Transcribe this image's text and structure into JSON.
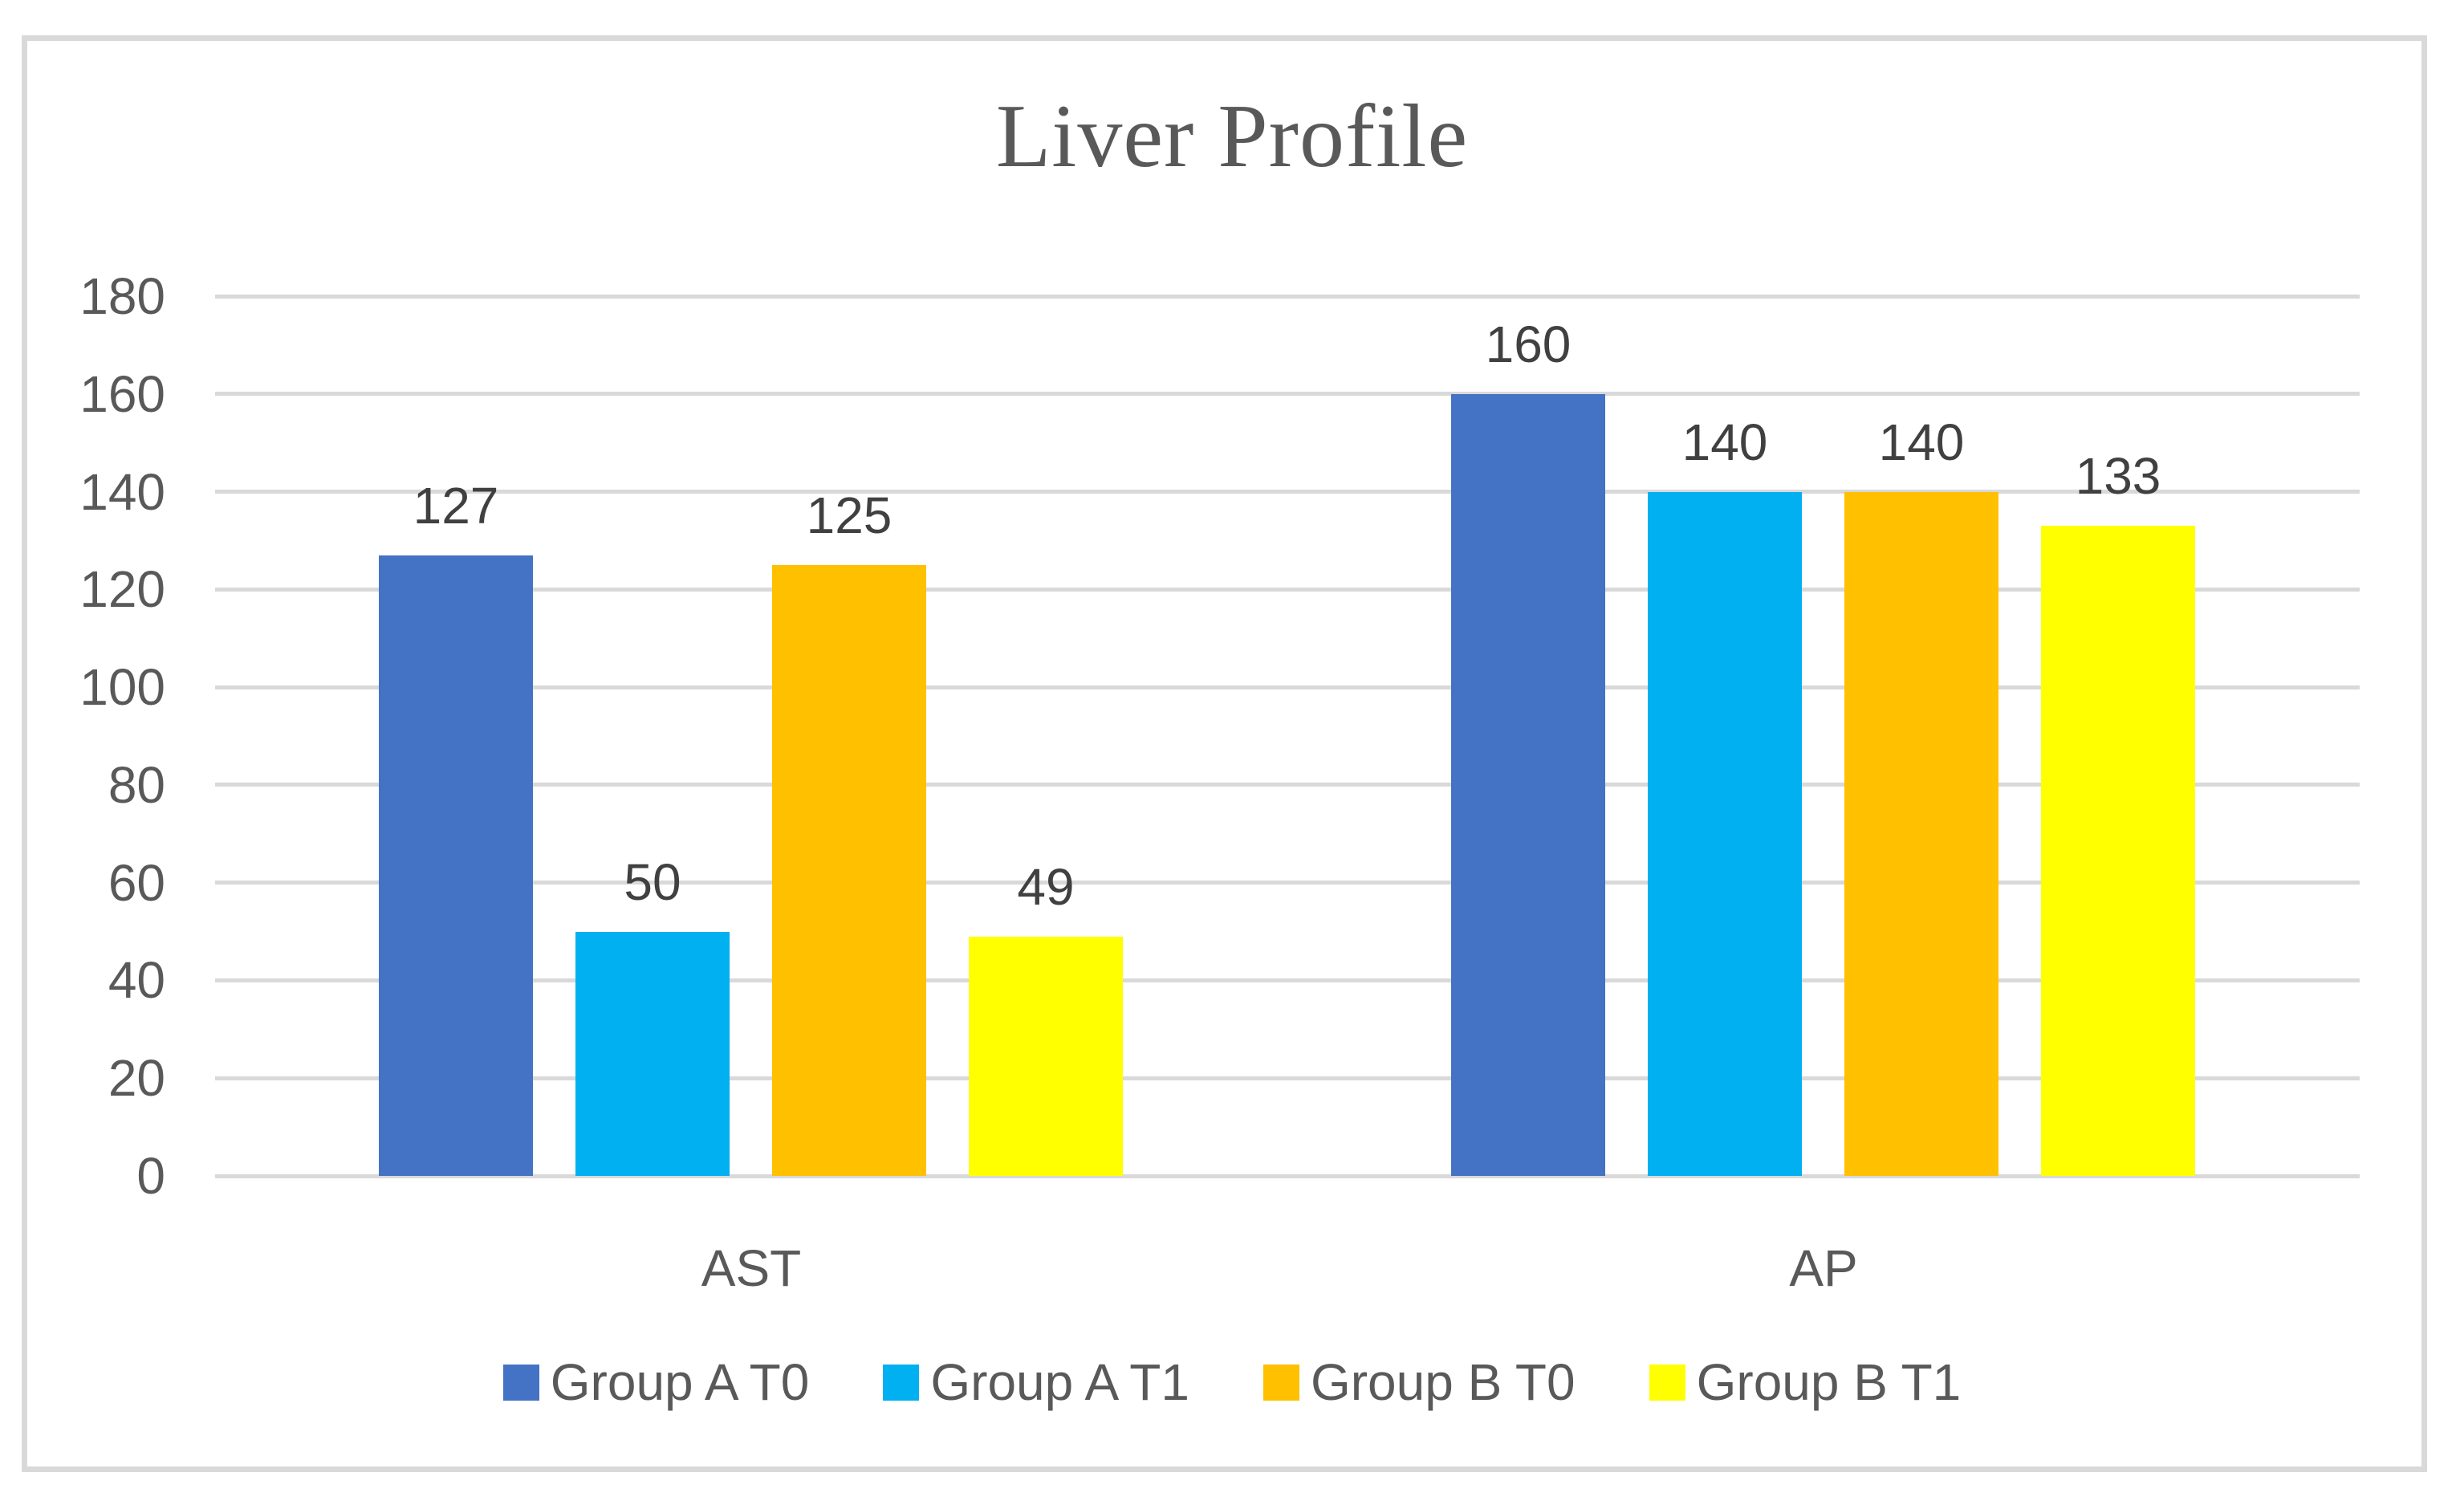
{
  "chart_data": {
    "type": "bar",
    "title": "Liver Profile",
    "categories": [
      "AST",
      "AP"
    ],
    "series": [
      {
        "name": "Group A T0",
        "color": "#4472C4",
        "values": [
          127,
          160
        ]
      },
      {
        "name": "Group A T1",
        "color": "#00B0F0",
        "values": [
          50,
          140
        ]
      },
      {
        "name": "Group B T0",
        "color": "#FFC000",
        "values": [
          125,
          140
        ]
      },
      {
        "name": "Group B T1",
        "color": "#FFFF00",
        "values": [
          49,
          133
        ]
      }
    ],
    "xlabel": "",
    "ylabel": "",
    "ylim": [
      0,
      180
    ],
    "y_tick_step": 20,
    "y_ticks": [
      0,
      20,
      40,
      60,
      80,
      100,
      120,
      140,
      160,
      180
    ],
    "grid": true,
    "legend_position": "bottom",
    "data_labels_shown": true,
    "colors": {
      "gridline": "#D9D9D9",
      "frame_border": "#D9D9D9",
      "axis_text": "#595959",
      "data_label_text": "#404040",
      "title_text": "#595959",
      "background": "#FFFFFF"
    }
  }
}
